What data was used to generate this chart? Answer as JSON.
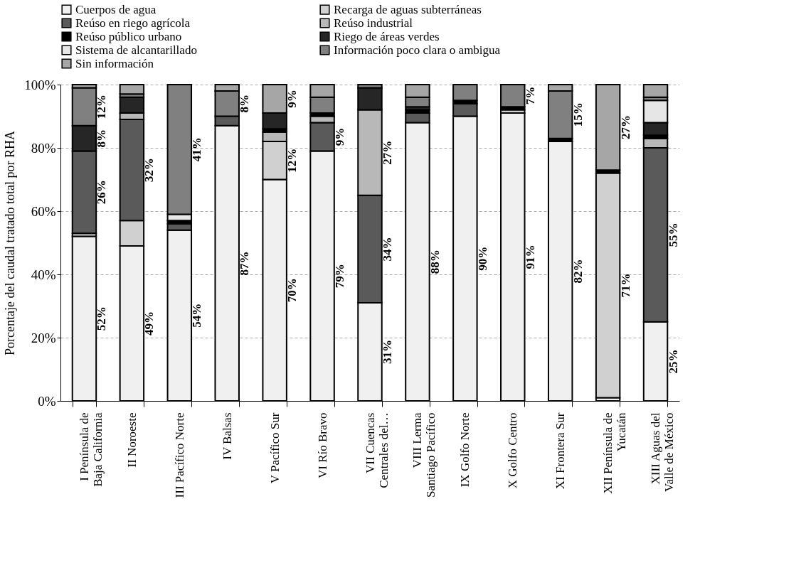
{
  "chart_data": {
    "type": "bar",
    "stacked": true,
    "ylabel": "Porcentaje del caudal tratado total por RHA",
    "categories": [
      "I Península de\nBaja California",
      "II Noroeste",
      "III Pacífico Norte",
      "IV Balsas",
      "V Pacífico Sur",
      "VI Río Bravo",
      "VII Cuencas\nCentrales del…",
      "VIII Lerma\nSantiago Pacífico",
      "IX Golfo Norte",
      "X Golfo Centro",
      "XI Frontera Sur",
      "XII Península de\nYucatán",
      "XIII Aguas del\nValle de México"
    ],
    "series": [
      {
        "name": "Cuerpos de agua",
        "color": "#f0f0f0",
        "values": [
          52,
          49,
          54,
          87,
          70,
          79,
          31,
          88,
          90,
          91,
          82,
          1,
          25
        ],
        "value_labels": [
          "52%",
          "49%",
          "54%",
          "87%",
          "70%",
          "79%",
          "31%",
          "88%",
          "90%",
          "91%",
          "82%",
          null,
          "25%"
        ]
      },
      {
        "name": "Recarga de aguas subterráneas",
        "color": "#d0d0d0",
        "values": [
          1,
          8,
          0,
          0,
          12,
          0,
          0,
          0,
          0,
          1,
          0,
          71,
          0
        ],
        "value_labels": [
          null,
          null,
          null,
          null,
          "12%",
          null,
          null,
          null,
          null,
          null,
          null,
          "71%",
          null
        ]
      },
      {
        "name": "Reúso en riego agrícola",
        "color": "#5a5a5a",
        "values": [
          26,
          32,
          2,
          3,
          0,
          9,
          34,
          3,
          4,
          0,
          0,
          0,
          55
        ],
        "value_labels": [
          "26%",
          "32%",
          null,
          null,
          null,
          "9%",
          "34%",
          null,
          null,
          null,
          null,
          null,
          "55%"
        ]
      },
      {
        "name": "Reúso industrial",
        "color": "#b8b8b8",
        "values": [
          0,
          2,
          0,
          0,
          3,
          2,
          27,
          0,
          0,
          0,
          0,
          0,
          3
        ],
        "value_labels": [
          null,
          null,
          null,
          null,
          null,
          null,
          "27%",
          null,
          null,
          null,
          null,
          null,
          null
        ]
      },
      {
        "name": "Reúso público urbano",
        "color": "#000000",
        "values": [
          0,
          0,
          1,
          0,
          1,
          1,
          0,
          1,
          1,
          1,
          1,
          1,
          1
        ]
      },
      {
        "name": "Riego de áreas verdes",
        "color": "#262626",
        "values": [
          8,
          5,
          0,
          0,
          5,
          0,
          7,
          1,
          0,
          0,
          0,
          0,
          4
        ],
        "value_labels": [
          "8%",
          null,
          null,
          null,
          null,
          null,
          null,
          null,
          null,
          null,
          null,
          null,
          null
        ]
      },
      {
        "name": "Sistema de alcantarillado",
        "color": "#e6e6e6",
        "values": [
          0,
          0,
          2,
          0,
          0,
          0,
          0,
          0,
          0,
          0,
          0,
          0,
          7
        ]
      },
      {
        "name": "Información poco clara o ambigua",
        "color": "#808080",
        "values": [
          12,
          1,
          41,
          8,
          0,
          5,
          1,
          3,
          5,
          7,
          15,
          0,
          1
        ],
        "value_labels": [
          "12%",
          null,
          "41%",
          "8%",
          null,
          null,
          null,
          null,
          null,
          "7%",
          "15%",
          null,
          null
        ]
      },
      {
        "name": "Sin información",
        "color": "#a6a6a6",
        "values": [
          1,
          3,
          0,
          2,
          9,
          4,
          0,
          4,
          0,
          0,
          2,
          27,
          4
        ],
        "value_labels": [
          null,
          null,
          null,
          null,
          "9%",
          null,
          null,
          null,
          null,
          null,
          null,
          "27%",
          null
        ]
      }
    ],
    "ylim": [
      0,
      100
    ],
    "yticks": [
      {
        "value": 0,
        "label": "0%"
      },
      {
        "value": 20,
        "label": "20%"
      },
      {
        "value": 40,
        "label": "40%"
      },
      {
        "value": 60,
        "label": "60%"
      },
      {
        "value": 80,
        "label": "80%"
      },
      {
        "value": 100,
        "label": "100%"
      }
    ],
    "grid": "y",
    "legend": "top"
  }
}
